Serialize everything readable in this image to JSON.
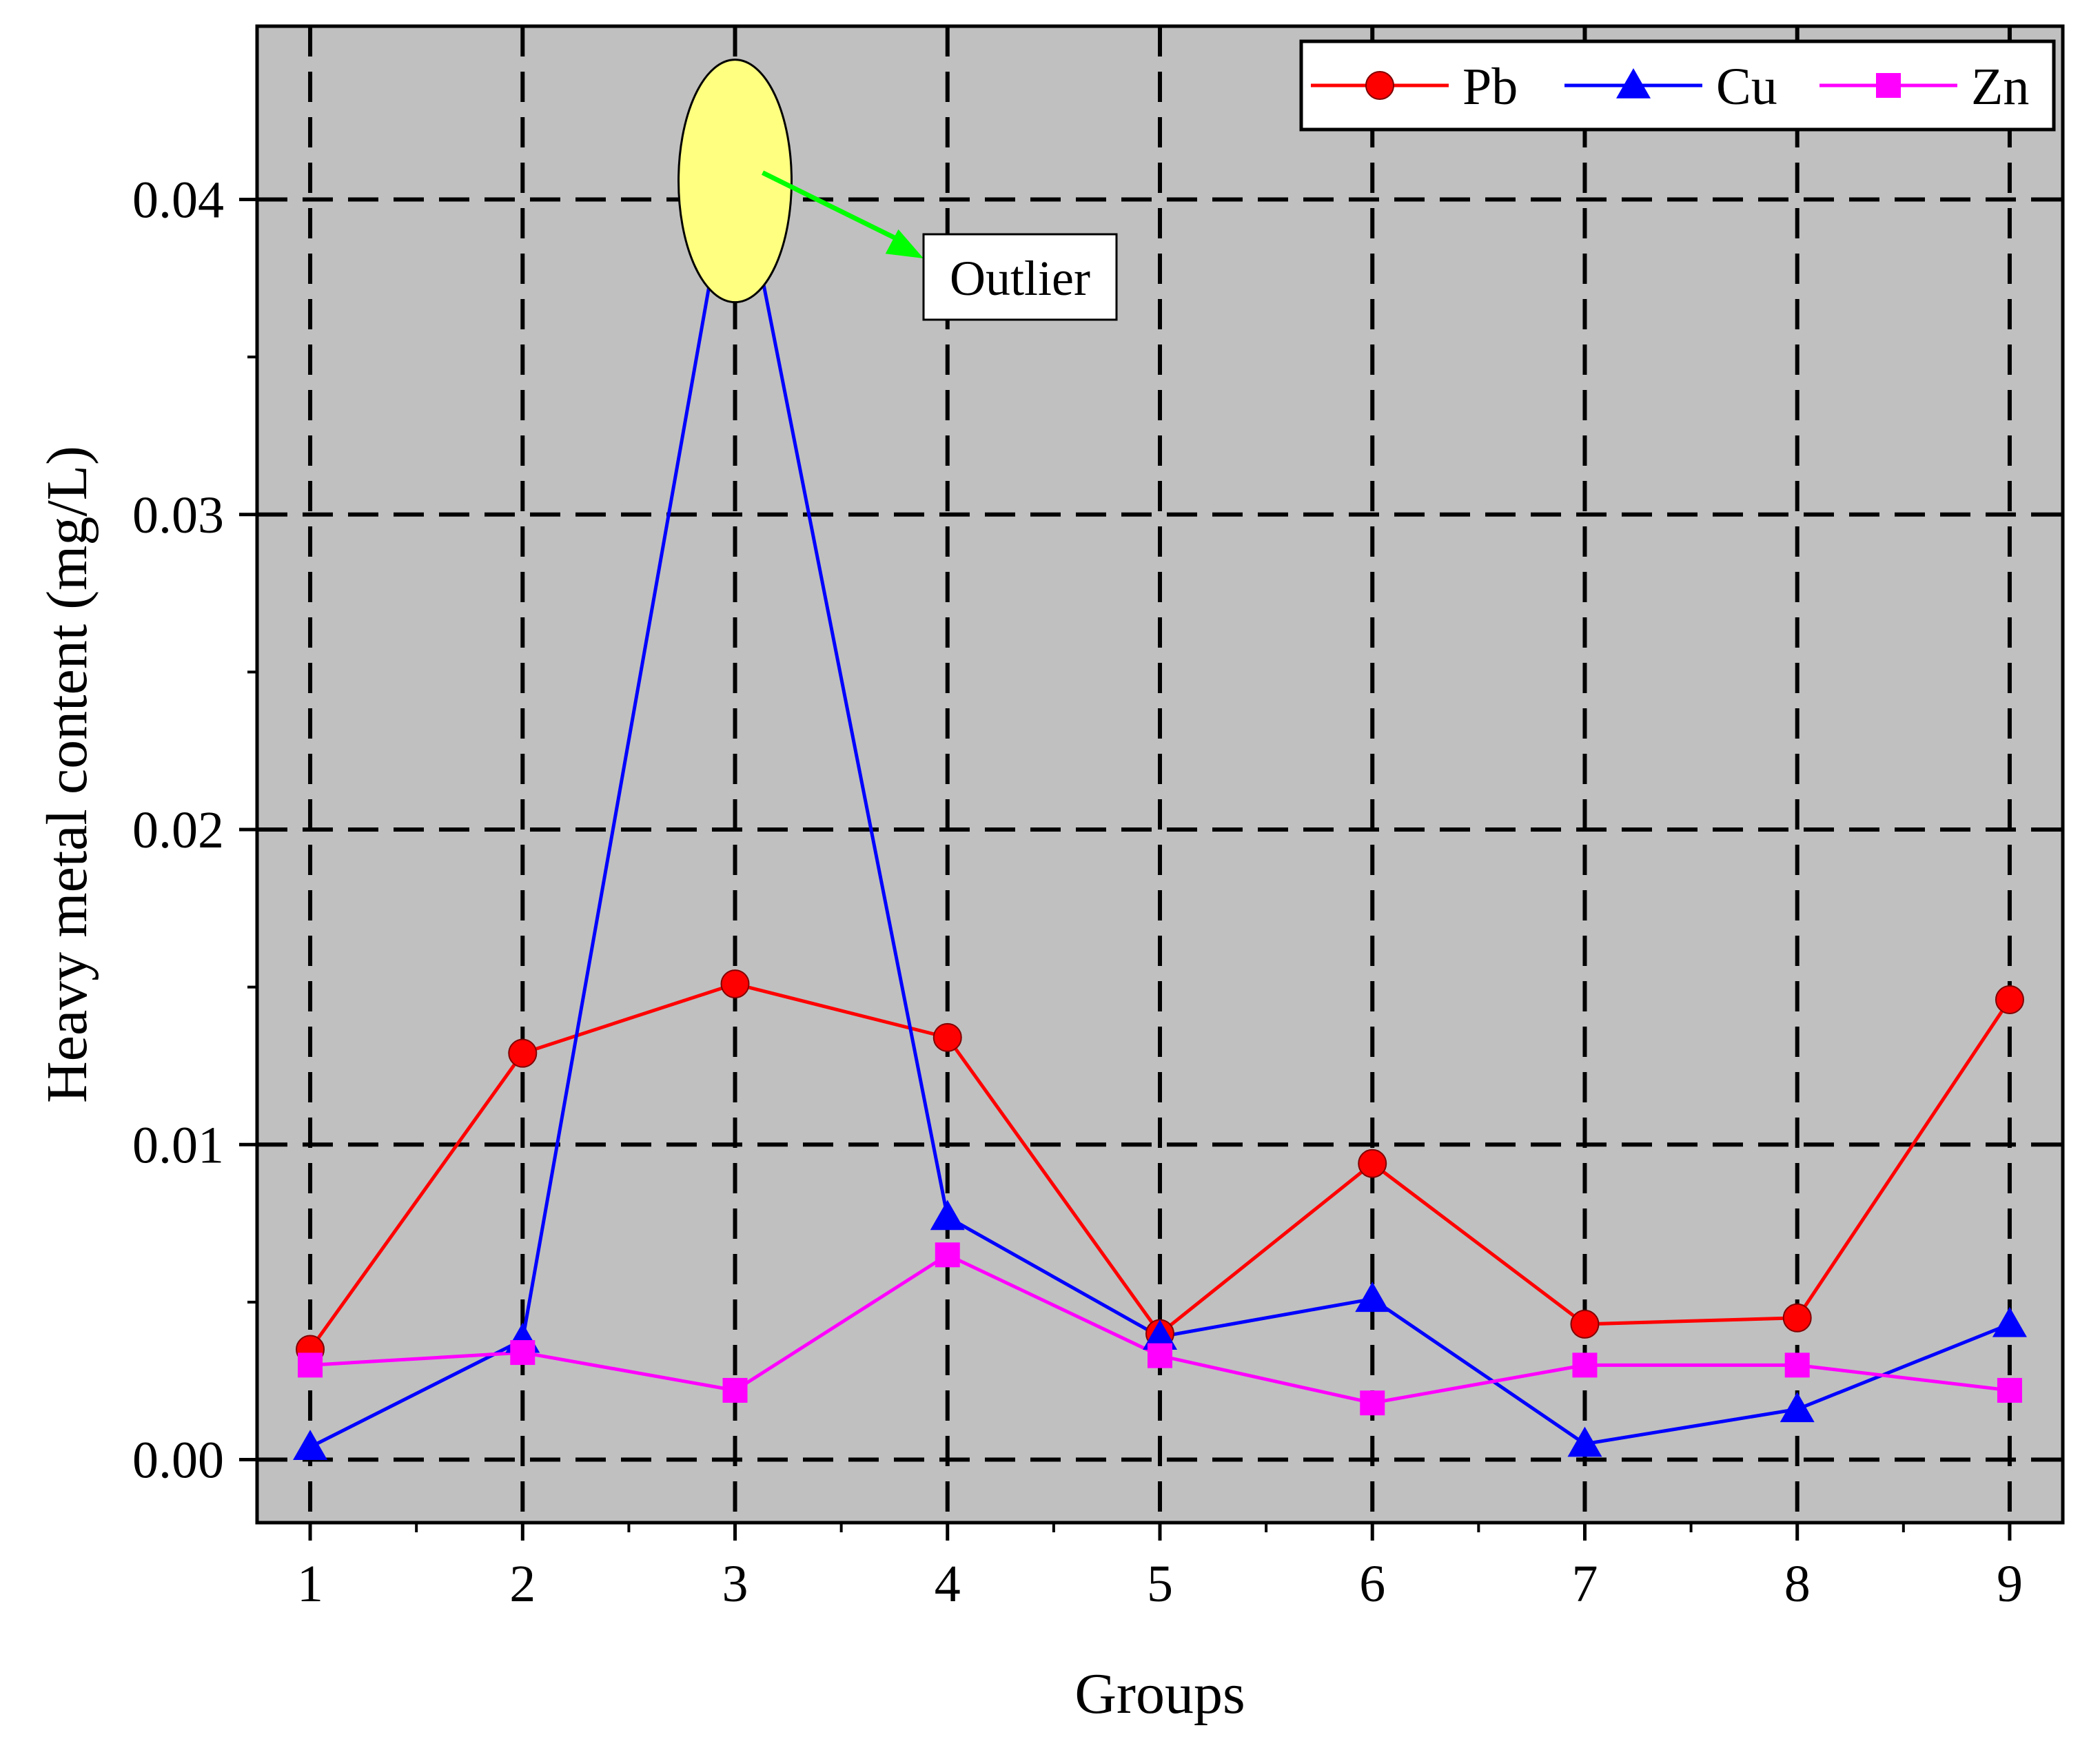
{
  "chart_data": {
    "type": "line",
    "title": "",
    "xlabel": "Groups",
    "ylabel": "Heavy metal content (mg/L)",
    "x": [
      1,
      2,
      3,
      4,
      5,
      6,
      7,
      8,
      9
    ],
    "x_tick_labels": [
      "1",
      "2",
      "3",
      "4",
      "5",
      "6",
      "7",
      "8",
      "9"
    ],
    "xlim": [
      0.75,
      9.25
    ],
    "ylim": [
      -0.002,
      0.0455
    ],
    "y_ticks": [
      0,
      0.01,
      0.02,
      0.03,
      0.04
    ],
    "y_tick_labels": [
      "0.00",
      "0.01",
      "0.02",
      "0.03",
      "0.04"
    ],
    "grid": true,
    "legend_position": "top-right",
    "background_color": "#c0c0c0",
    "series": [
      {
        "name": "Pb",
        "color": "#ff0000",
        "marker": "circle",
        "values": [
          0.0035,
          0.0129,
          0.0151,
          0.0134,
          0.004,
          0.0094,
          0.0043,
          0.0045,
          0.0146
        ]
      },
      {
        "name": "Cu",
        "color": "#0000ff",
        "marker": "triangle",
        "values": [
          0.0004,
          0.0038,
          0.0419,
          0.0077,
          0.0039,
          0.0051,
          0.0005,
          0.0016,
          0.0043
        ]
      },
      {
        "name": "Zn",
        "color": "#ff00ff",
        "marker": "square",
        "values": [
          0.003,
          0.0034,
          0.0022,
          0.0065,
          0.0033,
          0.0018,
          0.003,
          0.003,
          0.0022
        ]
      }
    ],
    "annotation": {
      "text": "Outlier",
      "target_series": "Cu",
      "target_x": 3,
      "highlight_color": "#ffff80",
      "arrow_color": "#00ff00"
    }
  }
}
